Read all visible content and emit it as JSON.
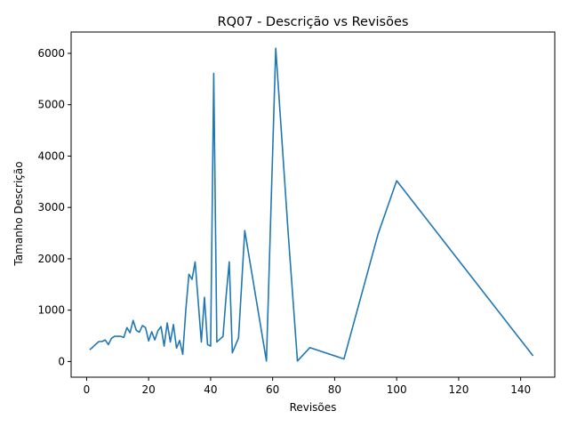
{
  "chart_data": {
    "type": "line",
    "title": "RQ07 - Descrição vs Revisões",
    "xlabel": "Revisões",
    "ylabel": "Tamanho Descrição",
    "xlim": [
      -5,
      151
    ],
    "ylim": [
      -305,
      6415
    ],
    "xticks": [
      0,
      20,
      40,
      60,
      80,
      100,
      120,
      140
    ],
    "yticks": [
      0,
      1000,
      2000,
      3000,
      4000,
      5000,
      6000
    ],
    "grid": false,
    "legend": "none",
    "series": [
      {
        "color": "#1f77b4",
        "x": [
          1,
          2,
          3,
          4,
          5,
          6,
          7,
          8,
          9,
          10,
          11,
          12,
          13,
          14,
          15,
          16,
          17,
          18,
          19,
          20,
          21,
          22,
          23,
          24,
          25,
          26,
          27,
          28,
          29,
          30,
          31,
          32,
          33,
          34,
          35,
          37,
          38,
          39,
          40,
          41,
          42,
          44,
          45,
          46,
          47,
          49,
          50,
          51,
          58,
          61,
          65,
          68,
          72,
          83,
          94,
          100,
          144
        ],
        "y": [
          230,
          280,
          340,
          390,
          390,
          420,
          330,
          450,
          490,
          490,
          490,
          470,
          660,
          560,
          800,
          610,
          570,
          700,
          660,
          400,
          580,
          420,
          600,
          680,
          300,
          750,
          380,
          720,
          260,
          410,
          140,
          1010,
          1700,
          1600,
          1940,
          380,
          1250,
          330,
          300,
          5610,
          380,
          490,
          1280,
          1940,
          170,
          460,
          1500,
          2550,
          10,
          6100,
          2510,
          10,
          270,
          50,
          2480,
          3520,
          110
        ]
      }
    ]
  }
}
